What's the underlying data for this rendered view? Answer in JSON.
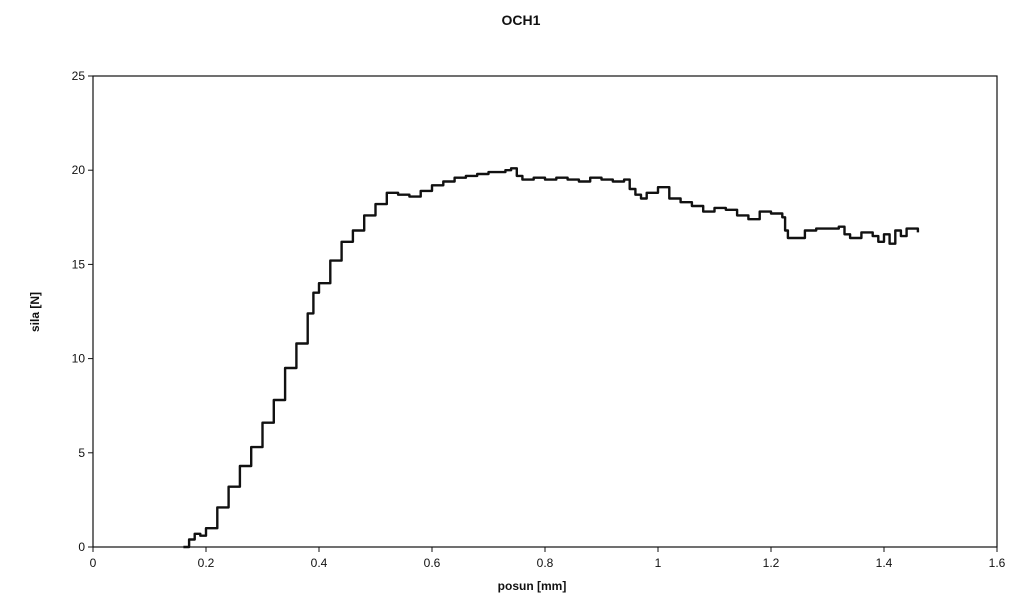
{
  "chart_data": {
    "type": "line",
    "title": "OCH1",
    "xlabel": "posun [mm]",
    "ylabel": "sila [N]",
    "xlim": [
      0,
      1.6
    ],
    "ylim": [
      0,
      25
    ],
    "x_ticks": [
      0,
      0.2,
      0.4,
      0.6,
      0.8,
      1,
      1.2,
      1.4,
      1.6
    ],
    "x_tick_labels": [
      "0",
      "0.2",
      "0.4",
      "0.6",
      "0.8",
      "1",
      "1.2",
      "1.4",
      "1.6"
    ],
    "y_ticks": [
      0,
      5,
      10,
      15,
      20,
      25
    ],
    "y_tick_labels": [
      "0",
      "5",
      "10",
      "15",
      "20",
      "25"
    ],
    "grid": false,
    "legend": "none",
    "series": [
      {
        "color": "#111111",
        "x": [
          0.16,
          0.17,
          0.18,
          0.19,
          0.2,
          0.22,
          0.24,
          0.26,
          0.28,
          0.3,
          0.32,
          0.34,
          0.36,
          0.38,
          0.39,
          0.4,
          0.42,
          0.44,
          0.46,
          0.48,
          0.5,
          0.52,
          0.54,
          0.56,
          0.58,
          0.6,
          0.62,
          0.64,
          0.66,
          0.68,
          0.7,
          0.72,
          0.73,
          0.74,
          0.75,
          0.76,
          0.78,
          0.8,
          0.82,
          0.84,
          0.86,
          0.88,
          0.9,
          0.92,
          0.94,
          0.95,
          0.96,
          0.97,
          0.98,
          1.0,
          1.02,
          1.04,
          1.06,
          1.08,
          1.1,
          1.12,
          1.14,
          1.16,
          1.18,
          1.2,
          1.22,
          1.225,
          1.23,
          1.26,
          1.28,
          1.3,
          1.32,
          1.33,
          1.34,
          1.36,
          1.38,
          1.39,
          1.4,
          1.41,
          1.42,
          1.43,
          1.44,
          1.46
        ],
        "y": [
          0.0,
          0.4,
          0.7,
          0.6,
          1.0,
          2.1,
          3.2,
          4.3,
          5.3,
          6.6,
          7.8,
          9.5,
          10.8,
          12.4,
          13.5,
          14.0,
          15.2,
          16.2,
          16.8,
          17.6,
          18.2,
          18.8,
          18.7,
          18.6,
          18.9,
          19.2,
          19.4,
          19.6,
          19.7,
          19.8,
          19.9,
          19.9,
          20.0,
          20.1,
          19.7,
          19.5,
          19.6,
          19.5,
          19.6,
          19.5,
          19.4,
          19.6,
          19.5,
          19.4,
          19.5,
          19.0,
          18.7,
          18.5,
          18.8,
          19.1,
          18.5,
          18.3,
          18.1,
          17.8,
          18.0,
          17.9,
          17.6,
          17.4,
          17.8,
          17.7,
          17.5,
          16.8,
          16.4,
          16.8,
          16.9,
          16.9,
          17.0,
          16.6,
          16.4,
          16.7,
          16.5,
          16.2,
          16.6,
          16.1,
          16.8,
          16.5,
          16.9,
          16.7
        ]
      }
    ]
  }
}
